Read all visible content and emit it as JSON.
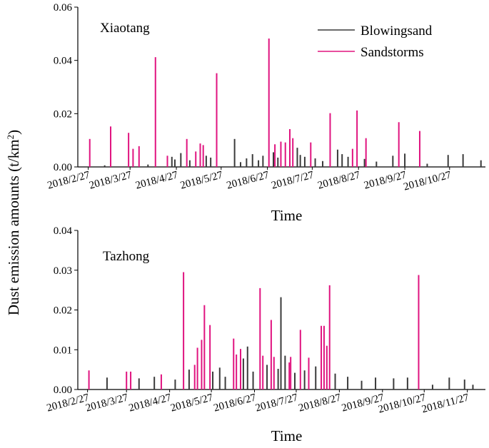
{
  "ylabel": "Dust emission amounts (t/km",
  "ylabel_sup": "2",
  "ylabel_end": ")",
  "colors": {
    "blowingsand": "#3a3a3a",
    "sandstorms": "#e0137f",
    "axis": "#000000"
  },
  "chart_data": [
    {
      "type": "bar",
      "title": "Xiaotang",
      "xlabel": "Time",
      "ylim": [
        0,
        0.06
      ],
      "yticks": [
        0.0,
        0.02,
        0.04,
        0.06
      ],
      "ytick_labels": [
        "0.00",
        "0.02",
        "0.04",
        "0.06"
      ],
      "xlim": [
        "2018-02-20",
        "2018-11-20"
      ],
      "xticks": [
        "2018-02-27",
        "2018-03-27",
        "2018-04-27",
        "2018-05-27",
        "2018-06-27",
        "2018-07-27",
        "2018-08-27",
        "2018-09-27",
        "2018-10-27"
      ],
      "xtick_labels": [
        "2018/2/27",
        "2018/3/27",
        "2018/4/27",
        "2018/5/27",
        "2018/6/27",
        "2018/7/27",
        "2018/8/27",
        "2018/9/27",
        "2018/10/27"
      ],
      "legend": {
        "position": "top-right",
        "entries": [
          "Blowingsand",
          "Sandstorms"
        ]
      },
      "series": [
        {
          "name": "Sandstorms",
          "events": [
            [
              "2018-02-28",
              0.0105
            ],
            [
              "2018-03-14",
              0.0152
            ],
            [
              "2018-03-26",
              0.0128
            ],
            [
              "2018-03-29",
              0.0068
            ],
            [
              "2018-04-02",
              0.0078
            ],
            [
              "2018-04-13",
              0.0412
            ],
            [
              "2018-04-21",
              0.0042
            ],
            [
              "2018-05-04",
              0.0105
            ],
            [
              "2018-05-10",
              0.0058
            ],
            [
              "2018-05-13",
              0.0088
            ],
            [
              "2018-05-15",
              0.0082
            ],
            [
              "2018-05-24",
              0.0352
            ],
            [
              "2018-06-28",
              0.0482
            ],
            [
              "2018-07-02",
              0.0085
            ],
            [
              "2018-07-06",
              0.0095
            ],
            [
              "2018-07-09",
              0.0092
            ],
            [
              "2018-07-12",
              0.0142
            ],
            [
              "2018-07-14",
              0.0108
            ],
            [
              "2018-07-26",
              0.0092
            ],
            [
              "2018-08-08",
              0.0202
            ],
            [
              "2018-08-23",
              0.0068
            ],
            [
              "2018-08-26",
              0.0212
            ],
            [
              "2018-09-01",
              0.0108
            ],
            [
              "2018-09-23",
              0.0168
            ],
            [
              "2018-10-07",
              0.0135
            ]
          ]
        },
        {
          "name": "Blowingsand",
          "events": [
            [
              "2018-03-10",
              0.0006
            ],
            [
              "2018-04-08",
              0.0009
            ],
            [
              "2018-04-24",
              0.0038
            ],
            [
              "2018-04-26",
              0.0028
            ],
            [
              "2018-04-30",
              0.0052
            ],
            [
              "2018-05-06",
              0.0025
            ],
            [
              "2018-05-17",
              0.0042
            ],
            [
              "2018-05-20",
              0.0035
            ],
            [
              "2018-06-05",
              0.0105
            ],
            [
              "2018-06-09",
              0.0018
            ],
            [
              "2018-06-13",
              0.0032
            ],
            [
              "2018-06-17",
              0.0048
            ],
            [
              "2018-06-21",
              0.0025
            ],
            [
              "2018-06-24",
              0.0042
            ],
            [
              "2018-07-01",
              0.0055
            ],
            [
              "2018-07-04",
              0.0035
            ],
            [
              "2018-07-17",
              0.0072
            ],
            [
              "2018-07-19",
              0.0045
            ],
            [
              "2018-07-22",
              0.0038
            ],
            [
              "2018-07-29",
              0.0032
            ],
            [
              "2018-08-03",
              0.0022
            ],
            [
              "2018-08-13",
              0.0065
            ],
            [
              "2018-08-16",
              0.0048
            ],
            [
              "2018-08-20",
              0.0038
            ],
            [
              "2018-08-31",
              0.003
            ],
            [
              "2018-09-08",
              0.002
            ],
            [
              "2018-09-19",
              0.0042
            ],
            [
              "2018-09-27",
              0.005
            ],
            [
              "2018-10-12",
              0.0012
            ],
            [
              "2018-10-26",
              0.0045
            ],
            [
              "2018-11-05",
              0.0048
            ],
            [
              "2018-11-17",
              0.0025
            ]
          ]
        }
      ]
    },
    {
      "type": "bar",
      "title": "Tazhong",
      "xlabel": "Time",
      "ylim": [
        0,
        0.04
      ],
      "yticks": [
        0.0,
        0.01,
        0.02,
        0.03,
        0.04
      ],
      "ytick_labels": [
        "0.00",
        "0.01",
        "0.02",
        "0.03",
        "0.04"
      ],
      "xlim": [
        "2018-02-20",
        "2018-12-10"
      ],
      "xticks": [
        "2018-02-27",
        "2018-03-27",
        "2018-04-27",
        "2018-05-27",
        "2018-06-27",
        "2018-07-27",
        "2018-08-27",
        "2018-09-27",
        "2018-10-27",
        "2018-11-27"
      ],
      "xtick_labels": [
        "2018/2/27",
        "2018/3/27",
        "2018/4/27",
        "2018/5/27",
        "2018/6/27",
        "2018/7/27",
        "2018/8/27",
        "2018/9/27",
        "2018/10/27",
        "2018/11/27"
      ],
      "legend": null,
      "series": [
        {
          "name": "Sandstorms",
          "events": [
            [
              "2018-02-28",
              0.0048
            ],
            [
              "2018-03-27",
              0.0045
            ],
            [
              "2018-03-30",
              0.0045
            ],
            [
              "2018-04-21",
              0.0038
            ],
            [
              "2018-05-07",
              0.0295
            ],
            [
              "2018-05-15",
              0.0062
            ],
            [
              "2018-05-17",
              0.0105
            ],
            [
              "2018-05-20",
              0.0125
            ],
            [
              "2018-05-22",
              0.0212
            ],
            [
              "2018-05-26",
              0.0162
            ],
            [
              "2018-06-12",
              0.0128
            ],
            [
              "2018-06-14",
              0.0088
            ],
            [
              "2018-06-17",
              0.0102
            ],
            [
              "2018-07-01",
              0.0255
            ],
            [
              "2018-07-03",
              0.0085
            ],
            [
              "2018-07-09",
              0.0175
            ],
            [
              "2018-07-11",
              0.0082
            ],
            [
              "2018-07-22",
              0.0068
            ],
            [
              "2018-07-23",
              0.0082
            ],
            [
              "2018-07-30",
              0.015
            ],
            [
              "2018-08-05",
              0.008
            ],
            [
              "2018-08-14",
              0.016
            ],
            [
              "2018-08-16",
              0.016
            ],
            [
              "2018-08-18",
              0.011
            ],
            [
              "2018-08-20",
              0.0262
            ],
            [
              "2018-10-23",
              0.0288
            ]
          ]
        },
        {
          "name": "Blowingsand",
          "events": [
            [
              "2018-03-13",
              0.003
            ],
            [
              "2018-04-05",
              0.0028
            ],
            [
              "2018-04-16",
              0.0032
            ],
            [
              "2018-05-01",
              0.0025
            ],
            [
              "2018-05-11",
              0.005
            ],
            [
              "2018-05-28",
              0.0045
            ],
            [
              "2018-06-02",
              0.0055
            ],
            [
              "2018-06-06",
              0.0032
            ],
            [
              "2018-06-19",
              0.0078
            ],
            [
              "2018-06-22",
              0.0108
            ],
            [
              "2018-06-26",
              0.0045
            ],
            [
              "2018-07-06",
              0.0062
            ],
            [
              "2018-07-14",
              0.0052
            ],
            [
              "2018-07-16",
              0.0232
            ],
            [
              "2018-07-19",
              0.0085
            ],
            [
              "2018-07-26",
              0.0042
            ],
            [
              "2018-08-02",
              0.0048
            ],
            [
              "2018-08-10",
              0.0058
            ],
            [
              "2018-08-24",
              0.004
            ],
            [
              "2018-09-02",
              0.0032
            ],
            [
              "2018-09-12",
              0.0022
            ],
            [
              "2018-09-22",
              0.003
            ],
            [
              "2018-10-05",
              0.0028
            ],
            [
              "2018-10-15",
              0.003
            ],
            [
              "2018-11-02",
              0.0012
            ],
            [
              "2018-11-14",
              0.003
            ],
            [
              "2018-11-25",
              0.0025
            ],
            [
              "2018-12-01",
              0.0012
            ]
          ]
        }
      ]
    }
  ]
}
